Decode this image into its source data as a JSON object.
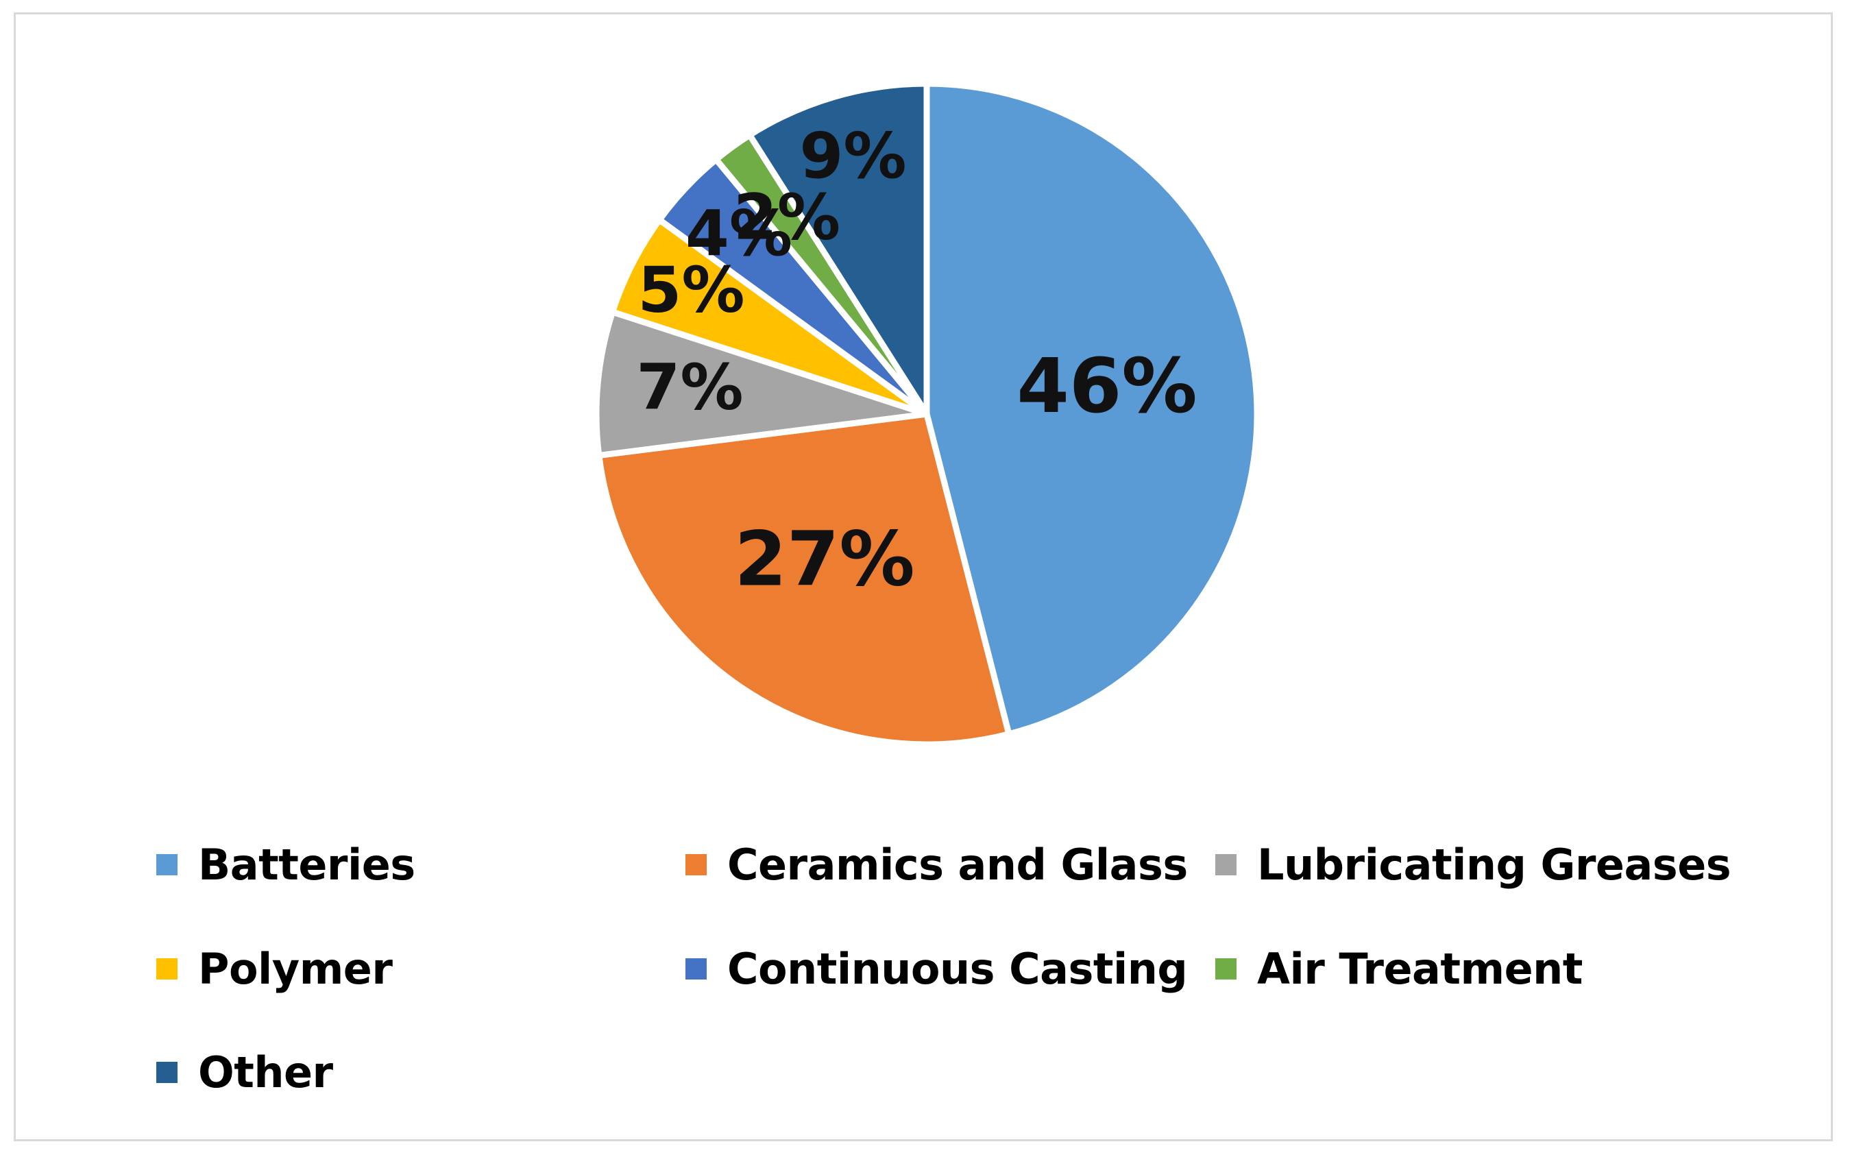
{
  "chart_data": {
    "type": "pie",
    "slices": [
      {
        "label": "Batteries",
        "value": 46,
        "value_label": "46%",
        "color": "#5B9BD5"
      },
      {
        "label": "Ceramics and Glass",
        "value": 27,
        "value_label": "27%",
        "color": "#ED7D31"
      },
      {
        "label": "Lubricating Greases",
        "value": 7,
        "value_label": "7%",
        "color": "#A5A5A5"
      },
      {
        "label": "Polymer",
        "value": 5,
        "value_label": "5%",
        "color": "#FFC000"
      },
      {
        "label": "Continuous Casting",
        "value": 4,
        "value_label": "4%",
        "color": "#4472C4"
      },
      {
        "label": "Air Treatment",
        "value": 2,
        "value_label": "2%",
        "color": "#70AD47"
      },
      {
        "label": "Other",
        "value": 9,
        "value_label": "9%",
        "color": "#255E91"
      }
    ],
    "legend_position": "bottom"
  }
}
